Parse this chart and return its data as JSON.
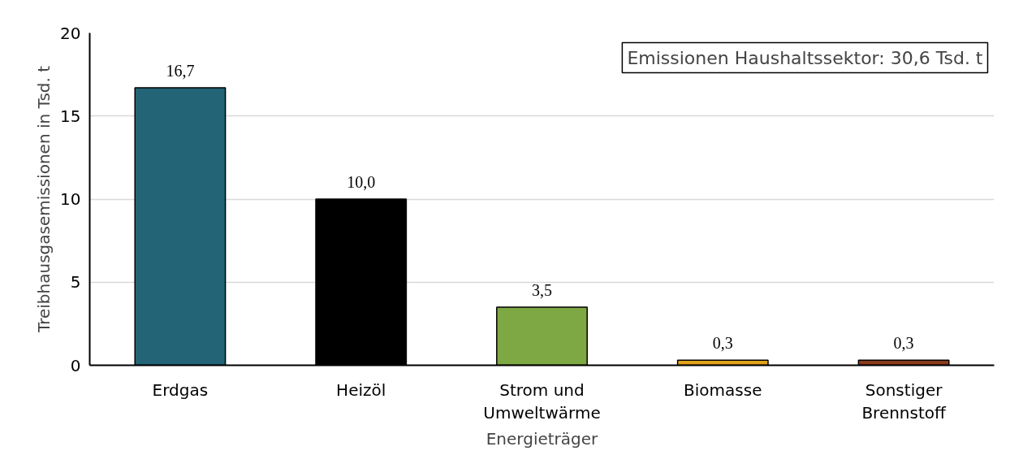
{
  "chart_data": {
    "type": "bar",
    "xlabel": "Energieträger",
    "ylabel": "Treibhausgasemissionen in Tsd. t",
    "categories": [
      "Erdgas",
      "Heizöl",
      "Strom und Umweltwärme",
      "Biomasse",
      "Sonstiger Brennstoff"
    ],
    "values": [
      16.7,
      10.0,
      3.5,
      0.3,
      0.3
    ],
    "colors": [
      "#236476",
      "#000000",
      "#7ea843",
      "#e3a21a",
      "#8b3a1a"
    ],
    "value_labels": [
      "16,7",
      "10,0",
      "3,5",
      "0,3",
      "0,3"
    ],
    "ylim": [
      0,
      20
    ],
    "yticks": [
      0,
      5,
      10,
      15,
      20
    ],
    "grid": "y",
    "annotations": [
      "Emissionen Haushaltssektor: 30,6 Tsd. t"
    ]
  }
}
